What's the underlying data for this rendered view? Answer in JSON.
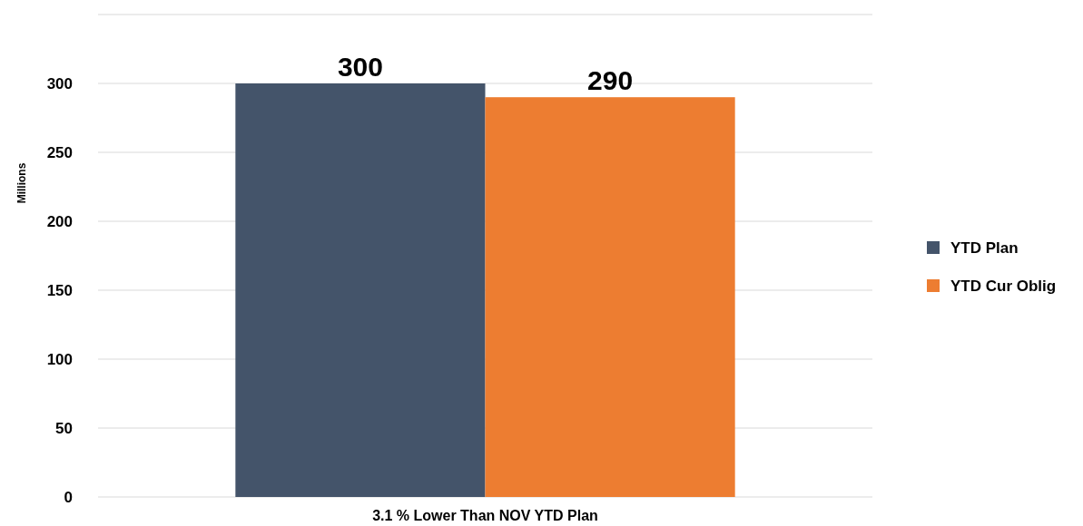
{
  "chart_data": {
    "type": "bar",
    "ylabel": "Millions",
    "categories": [
      "3.1 % Lower Than NOV YTD Plan"
    ],
    "series": [
      {
        "name": "YTD Plan",
        "color": "#44546a",
        "values": [
          300
        ]
      },
      {
        "name": "YTD Cur Oblig",
        "color": "#ed7d31",
        "values": [
          290
        ]
      }
    ],
    "ylim": [
      0,
      350
    ],
    "yticks": [
      0,
      50,
      100,
      150,
      200,
      250,
      300,
      {
        "value": 350,
        "label": null
      }
    ],
    "grid": "y",
    "legend": "right",
    "data_labels": true
  }
}
